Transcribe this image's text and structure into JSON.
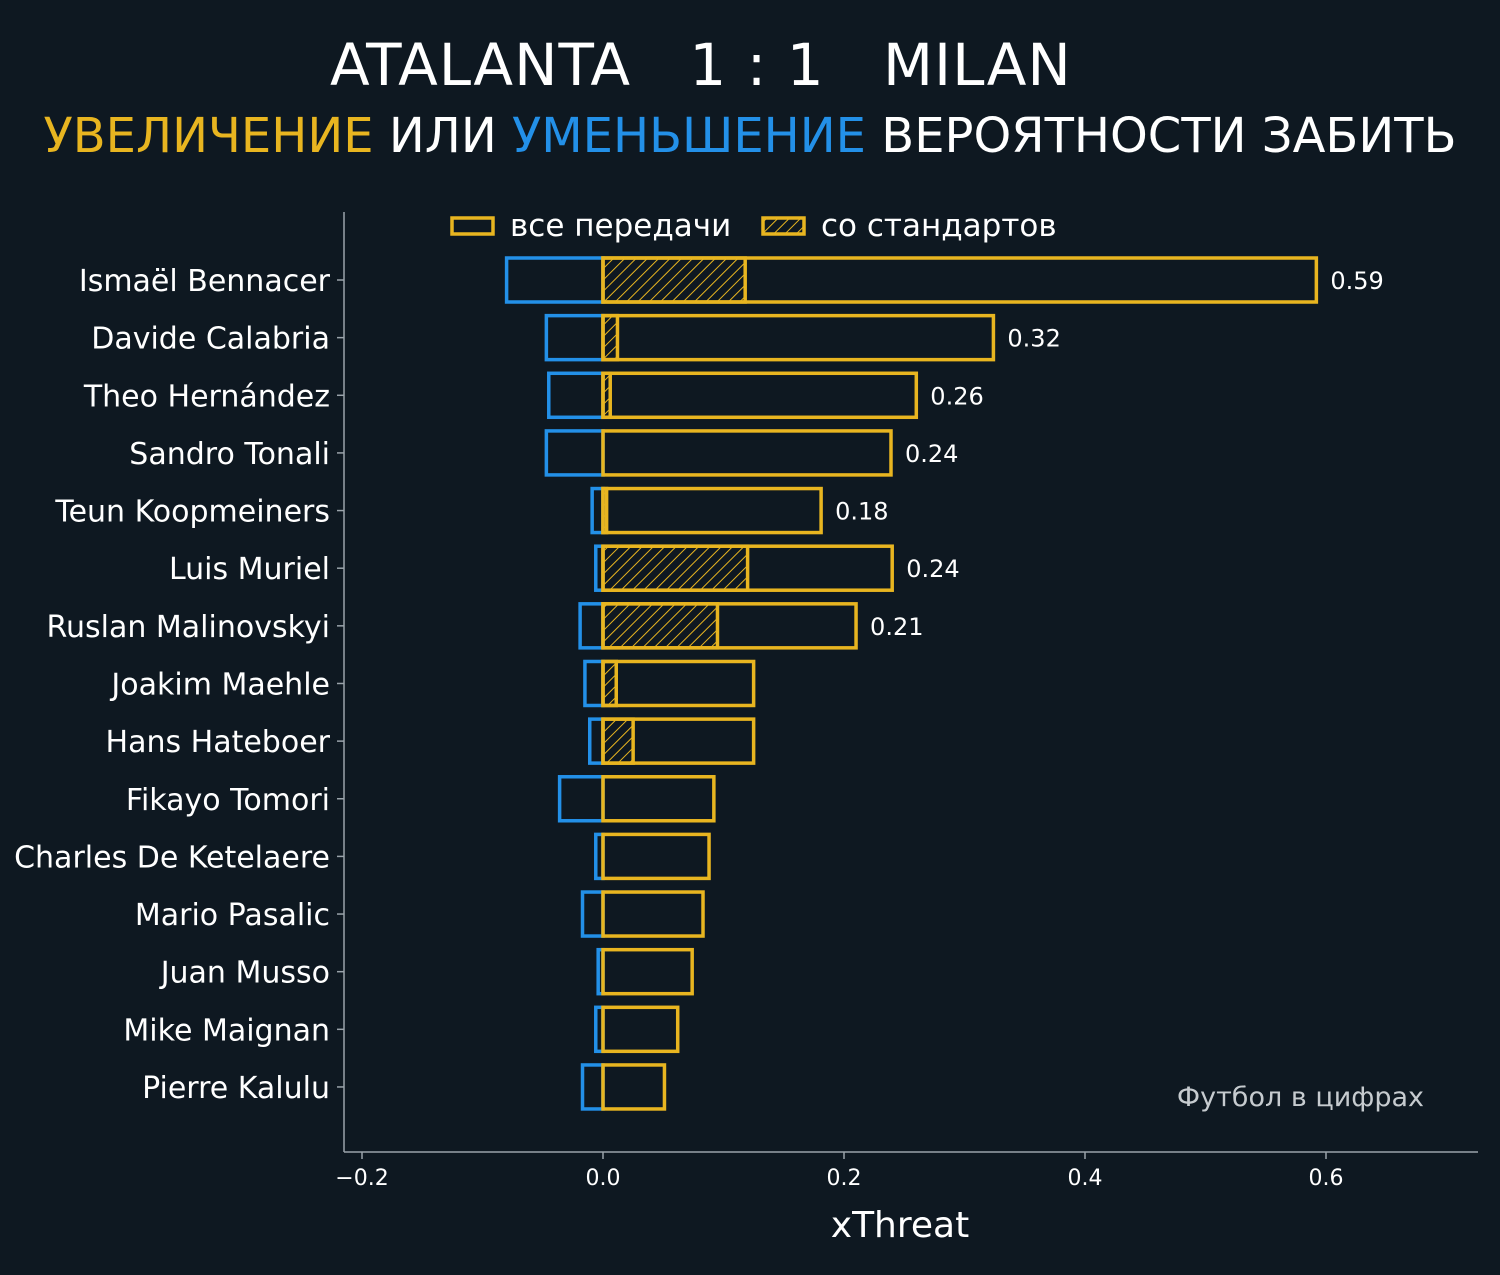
{
  "header": {
    "home_team": "ATALANTA",
    "score": "1 : 1",
    "away_team": "MILAN",
    "subtitle_increase": "УВЕЛИЧЕНИЕ",
    "subtitle_or": "ИЛИ",
    "subtitle_decrease": "УМЕНЬШЕНИЕ",
    "subtitle_rest": "ВЕРОЯТНОСТИ ЗАБИТЬ"
  },
  "colors": {
    "background": "#0e1821",
    "increase": "#e8b520",
    "decrease": "#2390e8",
    "axis": "#9aa3aa",
    "text": "#ffffff",
    "watermark": "#c6cbcf"
  },
  "watermark": "Футбол в цифрах",
  "chart_data": {
    "type": "bar",
    "orientation": "horizontal",
    "xlabel": "xThreat",
    "ylabel": "",
    "xlim": [
      -0.21,
      0.72
    ],
    "xticks": [
      -0.2,
      0.0,
      0.2,
      0.4,
      0.6
    ],
    "xtick_labels": [
      "−0.2",
      "0.0",
      "0.2",
      "0.4",
      "0.6"
    ],
    "legend": {
      "placement": "top-center",
      "entries": [
        "все передачи",
        "со стандартов"
      ]
    },
    "categories": [
      "Ismaël Bennacer",
      "Davide Calabria",
      "Theo Hernández",
      "Sandro Tonali",
      "Teun Koopmeiners",
      "Luis Muriel",
      "Ruslan Malinovskyi",
      "Joakim Maehle",
      "Hans Hateboer",
      "Fikayo Tomori",
      "Charles De Ketelaere",
      "Mario Pasalic",
      "Juan Musso",
      "Mike Maignan",
      "Pierre Kalulu"
    ],
    "series": [
      {
        "name": "все передачи",
        "positive": [
          0.592,
          0.324,
          0.26,
          0.239,
          0.181,
          0.24,
          0.21,
          0.125,
          0.125,
          0.092,
          0.088,
          0.083,
          0.074,
          0.062,
          0.051
        ],
        "negative": [
          -0.08,
          -0.047,
          -0.045,
          -0.047,
          -0.009,
          -0.006,
          -0.019,
          -0.015,
          -0.011,
          -0.036,
          -0.006,
          -0.017,
          -0.004,
          -0.006,
          -0.017
        ]
      },
      {
        "name": "со стандартов",
        "positive": [
          0.118,
          0.012,
          0.006,
          0.0,
          0.003,
          0.12,
          0.095,
          0.011,
          0.025,
          0.0,
          0.0,
          0.0,
          0.0,
          0.0,
          0.0
        ]
      }
    ],
    "value_labels": [
      "0.59",
      "0.32",
      "0.26",
      "0.24",
      "0.18",
      "0.24",
      "0.21",
      "",
      "",
      "",
      "",
      "",
      "",
      "",
      ""
    ]
  }
}
